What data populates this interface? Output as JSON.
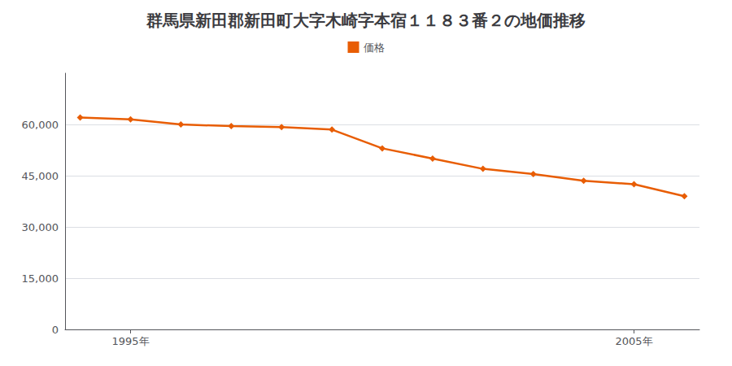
{
  "chart_data": {
    "type": "line",
    "title": "群馬県新田郡新田町大字木崎字本宿１１８３番２の地価推移",
    "x": [
      1994,
      1995,
      1996,
      1997,
      1998,
      1999,
      2000,
      2001,
      2002,
      2003,
      2004,
      2005,
      2006
    ],
    "series": [
      {
        "name": "価格",
        "color": "#e85d04",
        "marker": "diamond",
        "values": [
          62000,
          61500,
          60000,
          59500,
          59200,
          58500,
          53000,
          50000,
          47000,
          45500,
          43500,
          42500,
          39000
        ]
      }
    ],
    "xlim": [
      1993.7,
      2006.3
    ],
    "xticks": [
      {
        "value": 1995,
        "label": "1995年"
      },
      {
        "value": 2005,
        "label": "2005年"
      }
    ],
    "ylim": [
      0,
      75000
    ],
    "yticks": [
      0,
      {
        "value": 15000,
        "label": "15,000"
      },
      {
        "value": 30000,
        "label": "30,000"
      },
      {
        "value": 45000,
        "label": "45,000"
      },
      {
        "value": 60000,
        "label": "60,000"
      }
    ],
    "grid": true,
    "legend": "top"
  }
}
